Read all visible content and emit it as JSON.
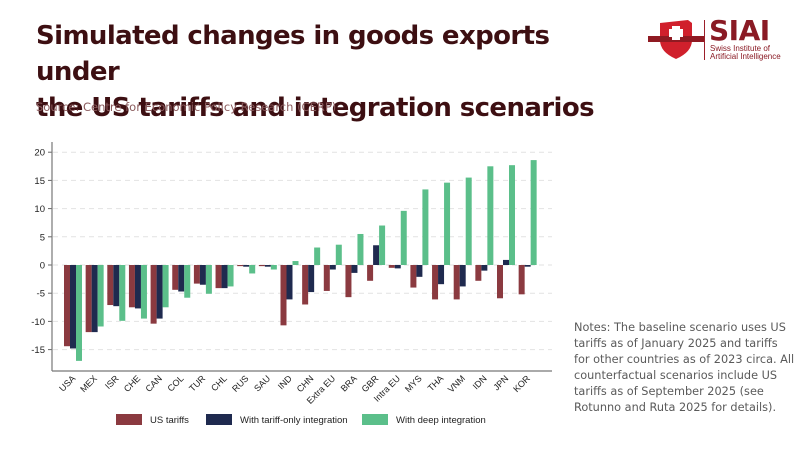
{
  "header": {
    "title_line1": "Simulated changes in goods exports under",
    "title_line2": "the US tariffs and integration scenarios",
    "source": "Source: Centre for Economic Policy Research (CERP)"
  },
  "logo": {
    "name": "SIAI",
    "subtitle_line1": "Swiss Institute of",
    "subtitle_line2": "Artificial Intelligence",
    "icon": "swiss-cross-shield-icon"
  },
  "notes": "Notes: The baseline scenario uses US tariffs as of January 2025 and tariffs for other countries as of 2023 circa. All counterfactual scenarios include US tariffs as of September 2025 (see Rotunno and Ruta 2025 for details).",
  "colors": {
    "us_tariffs": "#8b3a40",
    "tariff_only": "#1f2a4f",
    "deep": "#5bbf8a",
    "title": "#3d0f12",
    "brand": "#8a1a24"
  },
  "chart_data": {
    "type": "bar",
    "title": "Simulated changes in goods exports under the US tariffs and integration scenarios",
    "xlabel": "",
    "ylabel": "",
    "ylim": [
      -17.5,
      21.5
    ],
    "yticks": [
      -15,
      -10,
      -5,
      0,
      5,
      10,
      15,
      20
    ],
    "ytick_labels": [
      "-15",
      "-10",
      "-5",
      "0",
      "5",
      "10",
      "15",
      "20"
    ],
    "grid": true,
    "legend_position": "bottom",
    "categories": [
      "USA",
      "MEX",
      "ISR",
      "CHE",
      "CAN",
      "COL",
      "TUR",
      "CHL",
      "RUS",
      "SAU",
      "IND",
      "CHN",
      "Extra EU",
      "BRA",
      "GBR",
      "Intra EU",
      "MYS",
      "THA",
      "VNM",
      "IDN",
      "JPN",
      "KOR"
    ],
    "series": [
      {
        "name": "US tariffs",
        "color": "#8b3a40",
        "values": [
          -14.4,
          -11.9,
          -7.1,
          -7.5,
          -10.4,
          -4.4,
          -3.3,
          -4.1,
          -0.2,
          -0.2,
          -10.7,
          -7.0,
          -4.6,
          -5.7,
          -2.8,
          -0.5,
          -4.0,
          -6.1,
          -6.1,
          -2.8,
          -5.9,
          -5.2
        ]
      },
      {
        "name": "With tariff-only integration",
        "color": "#1f2a4f",
        "values": [
          -14.8,
          -11.9,
          -7.3,
          -7.7,
          -9.5,
          -4.7,
          -3.5,
          -4.1,
          -0.3,
          -0.3,
          -6.1,
          -4.8,
          -0.8,
          -1.4,
          3.5,
          -0.6,
          -2.1,
          -3.4,
          -3.8,
          -1.0,
          0.9,
          -0.3
        ]
      },
      {
        "name": "With deep integration",
        "color": "#5bbf8a",
        "values": [
          -17.0,
          -10.9,
          -9.9,
          -9.5,
          -7.5,
          -5.8,
          -5.1,
          -3.8,
          -1.5,
          -0.8,
          0.7,
          3.1,
          3.6,
          5.5,
          7.0,
          9.6,
          13.4,
          14.6,
          15.5,
          17.5,
          17.7,
          18.6
        ]
      }
    ]
  }
}
